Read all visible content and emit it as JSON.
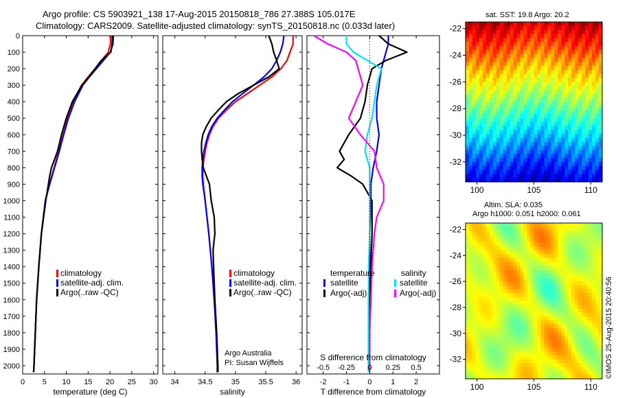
{
  "header": {
    "title_line1": "Argo profile: CS 5903921_138 17-Aug-2015 20150818_786 27.388S 105.017E",
    "title_line2": "Climatology: CARS2009. Satellite-adjusted climatology: synTS_20150818.nc (0.033d later)"
  },
  "footer_stamp": "©IMOS 25-Aug-2015 20:40:56",
  "colors": {
    "climatology": "#ff0000",
    "satellite": "#0000ff",
    "argo": "#000000",
    "sal_satellite": "#00e5ee",
    "sal_argo": "#ff00ff"
  },
  "chart_data": [
    {
      "type": "line",
      "id": "temperature",
      "xlabel": "temperature (deg C)",
      "ylabel": "",
      "xlim": [
        0,
        31
      ],
      "ylim": [
        2050,
        0
      ],
      "xticks": [
        0,
        5,
        10,
        15,
        20,
        25,
        30
      ],
      "yticks": [
        0,
        100,
        200,
        300,
        400,
        500,
        600,
        700,
        800,
        900,
        1000,
        1100,
        1200,
        1300,
        1400,
        1500,
        1600,
        1700,
        1800,
        1900,
        2000
      ],
      "legend": [
        "climatology",
        "satellite-adj. clim.",
        "Argo(..raw -QC)"
      ],
      "legend_position": "lower-middle",
      "series": [
        {
          "name": "climatology",
          "color": "#ff0000",
          "y": [
            0,
            50,
            100,
            150,
            200,
            250,
            300,
            400,
            500,
            600,
            700,
            800,
            900,
            1000,
            1200,
            1400,
            1600,
            1800,
            2000,
            2040
          ],
          "x": [
            20.2,
            20.1,
            19.6,
            18.1,
            16.6,
            15.0,
            13.5,
            11.6,
            10.3,
            9.3,
            8.3,
            7.2,
            6.1,
            5.2,
            4.3,
            3.7,
            3.2,
            2.9,
            2.6,
            2.5
          ]
        },
        {
          "name": "satellite-adj. clim.",
          "color": "#0000ff",
          "y": [
            0,
            50,
            100,
            150,
            200,
            250,
            300,
            400,
            500,
            600,
            700,
            800,
            900,
            1000,
            1200,
            1400,
            1600,
            1800,
            2000,
            2040
          ],
          "x": [
            20.8,
            20.7,
            20.1,
            18.5,
            16.9,
            15.3,
            13.8,
            11.9,
            10.5,
            9.4,
            8.4,
            7.3,
            6.2,
            5.2,
            4.3,
            3.7,
            3.2,
            2.9,
            2.6,
            2.5
          ]
        },
        {
          "name": "Argo(..raw -QC)",
          "color": "#000000",
          "y": [
            0,
            50,
            100,
            150,
            200,
            250,
            300,
            400,
            500,
            600,
            700,
            750,
            800,
            850,
            900,
            950,
            1000,
            1200,
            1400,
            1600,
            1800,
            2000,
            2040
          ],
          "x": [
            20.6,
            20.5,
            20.2,
            18.0,
            16.6,
            15.2,
            13.6,
            11.4,
            10.0,
            8.9,
            8.0,
            7.3,
            6.6,
            6.2,
            5.9,
            5.6,
            5.3,
            4.3,
            3.7,
            3.2,
            2.9,
            2.6,
            2.5
          ]
        }
      ]
    },
    {
      "type": "line",
      "id": "salinity",
      "xlabel": "salinity",
      "xlim": [
        33.8,
        36.1
      ],
      "ylim": [
        2050,
        0
      ],
      "xticks": [
        34,
        34.5,
        35,
        35.5,
        36
      ],
      "legend": [
        "climatology",
        "satellite-adj. clim.",
        "Argo(..raw -QC)"
      ],
      "legend_position": "lower-middle",
      "annotation": [
        "Argo Australia",
        "PI: Susan Wijffels"
      ],
      "series": [
        {
          "name": "climatology",
          "color": "#ff0000",
          "y": [
            0,
            50,
            100,
            150,
            200,
            250,
            300,
            350,
            400,
            450,
            500,
            550,
            600,
            650,
            700,
            750,
            800,
            850,
            900,
            1000,
            1200,
            1400,
            1600,
            1800,
            2000,
            2040
          ],
          "x": [
            35.95,
            35.95,
            35.9,
            35.85,
            35.75,
            35.6,
            35.4,
            35.2,
            35.0,
            34.85,
            34.72,
            34.63,
            34.57,
            34.53,
            34.5,
            34.48,
            34.46,
            34.46,
            34.47,
            34.5,
            34.56,
            34.61,
            34.65,
            34.68,
            34.71,
            34.71
          ]
        },
        {
          "name": "satellite-adj. clim.",
          "color": "#0000ff",
          "y": [
            0,
            50,
            100,
            150,
            200,
            250,
            300,
            350,
            400,
            450,
            500,
            550,
            600,
            650,
            700,
            750,
            800,
            850,
            900,
            1000,
            1200,
            1400,
            1600,
            1800,
            2000,
            2040
          ],
          "x": [
            35.8,
            35.78,
            35.74,
            35.68,
            35.6,
            35.47,
            35.3,
            35.12,
            34.95,
            34.82,
            34.7,
            34.61,
            34.55,
            34.51,
            34.48,
            34.46,
            34.45,
            34.45,
            34.46,
            34.5,
            34.56,
            34.61,
            34.65,
            34.68,
            34.7,
            34.7
          ]
        },
        {
          "name": "Argo(..raw -QC)",
          "color": "#000000",
          "y": [
            0,
            50,
            100,
            150,
            200,
            250,
            300,
            350,
            400,
            450,
            500,
            550,
            600,
            650,
            700,
            750,
            800,
            850,
            900,
            1000,
            1100,
            1200,
            1300,
            1400,
            1600,
            1800,
            2000,
            2040
          ],
          "x": [
            35.55,
            35.6,
            35.63,
            35.68,
            35.72,
            35.55,
            35.3,
            35.05,
            34.85,
            34.72,
            34.6,
            34.52,
            34.46,
            34.44,
            34.44,
            34.45,
            34.47,
            34.52,
            34.57,
            34.6,
            34.65,
            34.66,
            34.63,
            34.64,
            34.66,
            34.69,
            34.71,
            34.71
          ]
        }
      ]
    },
    {
      "type": "line",
      "id": "differences",
      "xlabel": "T difference from climatology",
      "xlabel_top": "S difference from climatology",
      "xlim": [
        -2.7,
        3.0
      ],
      "ylim": [
        2050,
        0
      ],
      "xticks_T": [
        -2,
        -1,
        0,
        1,
        2
      ],
      "xticks_S": [
        {
          "v": -0.5,
          "label": "-0.5"
        },
        {
          "v": -0.25,
          "label": "-0.25"
        },
        {
          "v": 0,
          "label": "0"
        },
        {
          "v": 0.25,
          "label": "0.25"
        },
        {
          "v": 0.5,
          "label": "0.5"
        }
      ],
      "legend_titles": [
        "temperature",
        "salinity"
      ],
      "legend_left": [
        "satellite",
        "Argo(-adj)"
      ],
      "legend_right": [
        "satellite",
        "Argo(-adj)"
      ],
      "series": [
        {
          "name": "satellite",
          "group": "temperature",
          "color": "#0000ff",
          "y": [
            0,
            50,
            100,
            150,
            200,
            300,
            400,
            500,
            600,
            700,
            800,
            900,
            1000,
            1200,
            1400,
            1600,
            1800,
            2000,
            2040
          ],
          "x": [
            0.8,
            0.8,
            0.7,
            0.6,
            0.5,
            0.4,
            0.3,
            0.3,
            0.4,
            0.3,
            0.15,
            0.05,
            0.05,
            0.0,
            0.0,
            -0.05,
            -0.05,
            -0.05,
            -0.05
          ]
        },
        {
          "name": "Argo(-adj)",
          "group": "temperature",
          "color": "#000000",
          "y": [
            0,
            50,
            100,
            150,
            200,
            300,
            400,
            500,
            600,
            700,
            750,
            800,
            850,
            900,
            1000,
            1200,
            1400,
            1600,
            1800,
            2000,
            2040
          ],
          "x": [
            0.4,
            0.8,
            1.6,
            0.7,
            0.1,
            -0.1,
            -0.2,
            -0.4,
            -0.9,
            -1.3,
            -1.1,
            -1.4,
            -0.8,
            -0.3,
            0.1,
            0.1,
            0.05,
            0.0,
            0.0,
            0.0,
            0.0
          ]
        },
        {
          "name": "satellite",
          "group": "salinity",
          "color": "#00e5ee",
          "y": [
            0,
            50,
            100,
            150,
            200,
            250,
            300,
            400,
            500,
            600,
            700,
            800,
            900,
            1000,
            1200,
            1400,
            1600,
            1800,
            2000,
            2040
          ],
          "x": [
            -1.0,
            -1.0,
            -0.7,
            -0.1,
            0.5,
            0.4,
            0.3,
            0.2,
            0.1,
            -0.1,
            -0.2,
            0.0,
            0.0,
            0.0,
            0.0,
            -0.05,
            -0.05,
            -0.05,
            -0.05,
            -0.05
          ]
        },
        {
          "name": "Argo(-adj)",
          "group": "salinity",
          "color": "#ff00ff",
          "y": [
            0,
            50,
            100,
            150,
            200,
            250,
            300,
            400,
            500,
            600,
            700,
            800,
            900,
            1000,
            1100,
            1200,
            1400,
            1600,
            1800,
            2000,
            2040
          ],
          "x": [
            -2.4,
            -1.8,
            -1.0,
            -0.6,
            -0.5,
            -0.4,
            -0.3,
            -0.6,
            -0.9,
            -0.4,
            0.2,
            0.3,
            0.6,
            0.6,
            0.3,
            0.2,
            0.1,
            0.05,
            0.0,
            0.0,
            0.0
          ]
        }
      ]
    },
    {
      "type": "heatmap",
      "id": "sst_map",
      "title": "sat. SST: 19.8 Argo: 20.2",
      "xlim": [
        99,
        111
      ],
      "ylim": [
        -33.5,
        -21.5
      ],
      "xticks": [
        100,
        105,
        110
      ],
      "yticks": [
        -22,
        -24,
        -26,
        -28,
        -30,
        -32
      ]
    },
    {
      "type": "heatmap",
      "id": "sla_map",
      "title_line1": "Altim. SLA: 0.035",
      "title_line2": "Argo h1000: 0.051 h2000: 0.061",
      "xlim": [
        99,
        111
      ],
      "ylim": [
        -33.5,
        -21.5
      ],
      "xticks": [
        100,
        105,
        110
      ],
      "yticks": [
        -22,
        -24,
        -26,
        -28,
        -30,
        -32
      ]
    }
  ]
}
